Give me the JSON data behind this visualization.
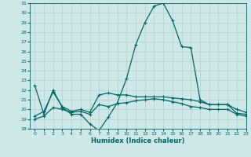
{
  "xlabel": "Humidex (Indice chaleur)",
  "background_color": "#cee8e8",
  "grid_color": "#b0d0cc",
  "line_color": "#006666",
  "ylim": [
    18,
    31
  ],
  "xlim": [
    -0.5,
    23
  ],
  "yticks": [
    18,
    19,
    20,
    21,
    22,
    23,
    24,
    25,
    26,
    27,
    28,
    29,
    30,
    31
  ],
  "xticks": [
    0,
    1,
    2,
    3,
    4,
    5,
    6,
    7,
    8,
    9,
    10,
    11,
    12,
    13,
    14,
    15,
    16,
    17,
    18,
    19,
    20,
    21,
    22,
    23
  ],
  "line1_x": [
    0,
    1,
    2,
    3,
    4,
    5,
    6,
    7,
    8,
    9,
    10,
    11,
    12,
    13,
    14,
    15,
    16,
    17,
    18,
    19,
    20,
    21,
    22,
    23
  ],
  "line1_y": [
    22.5,
    19.5,
    22.0,
    20.2,
    19.5,
    19.5,
    18.5,
    17.8,
    19.2,
    20.7,
    23.2,
    26.7,
    29.0,
    30.7,
    31.0,
    29.2,
    26.5,
    26.4,
    21.0,
    20.5,
    20.5,
    20.5,
    19.6,
    19.5
  ],
  "line2_x": [
    0,
    1,
    2,
    3,
    4,
    5,
    6,
    7,
    8,
    9,
    10,
    11,
    12,
    13,
    14,
    15,
    16,
    17,
    18,
    19,
    20,
    21,
    22,
    23
  ],
  "line2_y": [
    19.3,
    19.8,
    21.8,
    20.3,
    19.8,
    20.0,
    19.7,
    21.5,
    21.7,
    21.5,
    21.5,
    21.3,
    21.3,
    21.3,
    21.3,
    21.2,
    21.1,
    21.0,
    20.8,
    20.5,
    20.5,
    20.5,
    20.0,
    19.7
  ],
  "line3_x": [
    0,
    1,
    2,
    3,
    4,
    5,
    6,
    7,
    8,
    9,
    10,
    11,
    12,
    13,
    14,
    15,
    16,
    17,
    18,
    19,
    20,
    21,
    22,
    23
  ],
  "line3_y": [
    19.0,
    19.3,
    20.2,
    20.0,
    19.7,
    19.8,
    19.5,
    20.5,
    20.3,
    20.6,
    20.7,
    20.9,
    21.0,
    21.1,
    21.0,
    20.8,
    20.6,
    20.3,
    20.2,
    20.0,
    20.0,
    20.0,
    19.5,
    19.3
  ],
  "marker": "+",
  "markersize": 3.5,
  "linewidth": 0.9
}
